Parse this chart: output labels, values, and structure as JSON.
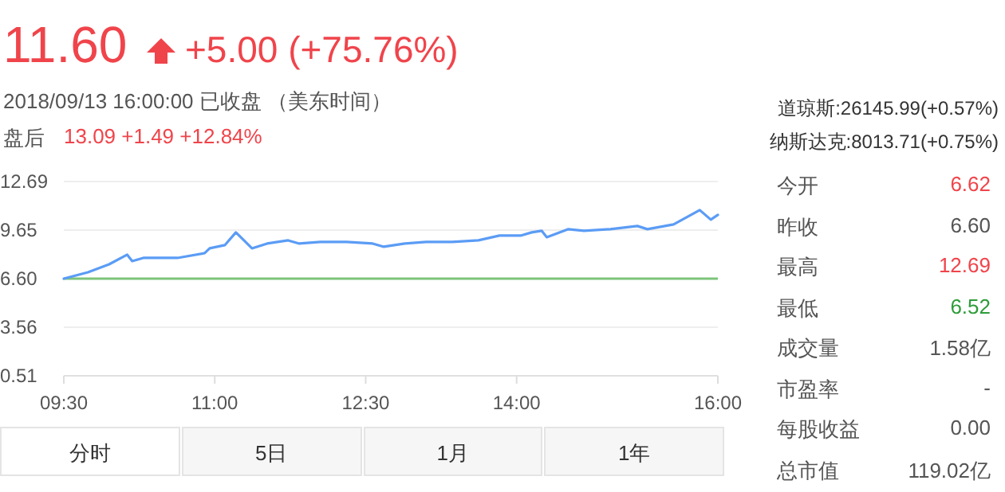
{
  "chart_data": [
    {
      "type": "other",
      "title": "11.60",
      "subtitle": "+5.00 (+75.76%)",
      "annotations": [
        "2018/09/13 16:00:00   已收盘 （美东时间）",
        "盘后",
        "13.09   +1.49   +12.84%",
        "道琼斯:26145.99(+0.57%)",
        "纳斯达克:8013.71(+0.75%)"
      ],
      "color": "#f0444b"
    },
    {
      "type": "line",
      "x": [
        9.5,
        9.74,
        9.95,
        10.13,
        10.18,
        10.29,
        10.63,
        10.9,
        10.95,
        11.1,
        11.21,
        11.29,
        11.37,
        11.52,
        11.73,
        11.84,
        12.05,
        12.31,
        12.57,
        12.68,
        12.89,
        13.1,
        13.36,
        13.62,
        13.83,
        14.04,
        14.15,
        14.25,
        14.3,
        14.51,
        14.67,
        14.93,
        15.2,
        15.3,
        15.56,
        15.82,
        15.93,
        16.0
      ],
      "series": [
        {
          "color": "#5b9cf5",
          "values": [
            6.6,
            7.0,
            7.5,
            8.1,
            7.7,
            7.9,
            7.9,
            8.2,
            8.5,
            8.7,
            9.5,
            9.0,
            8.5,
            8.8,
            9.0,
            8.8,
            8.9,
            8.9,
            8.8,
            8.6,
            8.8,
            8.9,
            8.9,
            9.0,
            9.3,
            9.3,
            9.5,
            9.6,
            9.2,
            9.7,
            9.6,
            9.7,
            9.9,
            9.7,
            10.0,
            10.9,
            10.3,
            10.6
          ]
        }
      ],
      "xlim": [
        9.5,
        16.0
      ],
      "ylim": [
        0.51,
        12.69
      ],
      "xticks": [
        {
          "value": 9.5,
          "label": "09:30"
        },
        {
          "value": 11,
          "label": "11:00"
        },
        {
          "value": 12.5,
          "label": "12:30"
        },
        {
          "value": 14,
          "label": "14:00"
        },
        {
          "value": 16,
          "label": "16:00"
        }
      ],
      "yticks": [
        0.51,
        3.56,
        {
          "value": 6.6,
          "label": "6.60"
        },
        9.65,
        12.69
      ],
      "grid": "y",
      "ref_lines": [
        {
          "axis": "y",
          "value": 6.6,
          "color": "#7cc47a"
        }
      ]
    },
    {
      "type": "other",
      "categories": [
        "今开",
        "昨收",
        "最高",
        "最低",
        "成交量",
        "市盈率",
        "每股收益",
        "总市值"
      ],
      "annotations": [
        "6.62",
        "6.60",
        "12.69",
        "6.52",
        "1.58亿",
        "-",
        "0.00",
        "119.02亿"
      ],
      "colors": [
        "#f0444b",
        "#555555",
        "#f0444b",
        "#2e9c3a",
        "#555555",
        "#555555",
        "#555555",
        "#555555"
      ]
    },
    {
      "type": "other",
      "categories": [
        "分时",
        "5日",
        "1月",
        "1年"
      ]
    }
  ]
}
